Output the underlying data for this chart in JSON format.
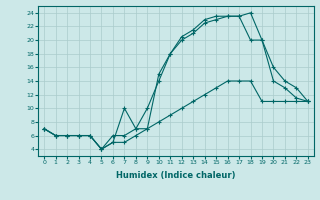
{
  "xlabel": "Humidex (Indice chaleur)",
  "ylabel": "",
  "bg_color": "#cce8e8",
  "line_color": "#006666",
  "grid_color": "#aacccc",
  "xlim": [
    -0.5,
    23.5
  ],
  "ylim": [
    3,
    25
  ],
  "yticks": [
    4,
    6,
    8,
    10,
    12,
    14,
    16,
    18,
    20,
    22,
    24
  ],
  "xticks": [
    0,
    1,
    2,
    3,
    4,
    5,
    6,
    7,
    8,
    9,
    10,
    11,
    12,
    13,
    14,
    15,
    16,
    17,
    18,
    19,
    20,
    21,
    22,
    23
  ],
  "line1_x": [
    0,
    1,
    2,
    3,
    4,
    5,
    6,
    7,
    8,
    9,
    10,
    11,
    12,
    13,
    14,
    15,
    16,
    17,
    18,
    19,
    20,
    21,
    22,
    23
  ],
  "line1_y": [
    7,
    6,
    6,
    6,
    6,
    4,
    5,
    5,
    6,
    7,
    8,
    9,
    10,
    11,
    12,
    13,
    14,
    14,
    14,
    11,
    11,
    11,
    11,
    11
  ],
  "line2_x": [
    0,
    1,
    2,
    3,
    4,
    5,
    6,
    7,
    8,
    9,
    10,
    11,
    12,
    13,
    14,
    15,
    16,
    17,
    18,
    19,
    20,
    21,
    22,
    23
  ],
  "line2_y": [
    7,
    6,
    6,
    6,
    6,
    4,
    5,
    10,
    7,
    7,
    15,
    18,
    20.5,
    21.5,
    23,
    23.5,
    23.5,
    23.5,
    20,
    20,
    14,
    13,
    11.5,
    11
  ],
  "line3_x": [
    0,
    1,
    2,
    3,
    4,
    5,
    6,
    7,
    8,
    9,
    10,
    11,
    12,
    13,
    14,
    15,
    16,
    17,
    18,
    19,
    20,
    21,
    22,
    23
  ],
  "line3_y": [
    7,
    6,
    6,
    6,
    6,
    4,
    6,
    6,
    7,
    10,
    14,
    18,
    20,
    21,
    22.5,
    23,
    23.5,
    23.5,
    24,
    20,
    16,
    14,
    13,
    11
  ]
}
